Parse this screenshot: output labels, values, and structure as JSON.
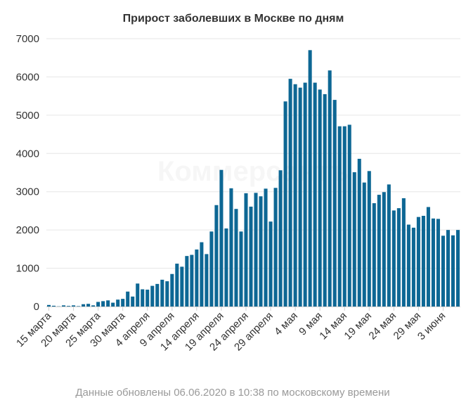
{
  "chart_data": {
    "type": "bar",
    "title": "Прирост заболевших в Москве по дням",
    "xlabel": "",
    "ylabel": "",
    "ylim": [
      0,
      7000
    ],
    "yticks": [
      0,
      1000,
      2000,
      3000,
      4000,
      5000,
      6000,
      7000
    ],
    "grid": true,
    "legend": "none",
    "bar_color": "#0d6794",
    "tick_labels": [
      {
        "label": "15 марта",
        "index": 0
      },
      {
        "label": "20 марта",
        "index": 5
      },
      {
        "label": "25 марта",
        "index": 10
      },
      {
        "label": "30 марта",
        "index": 15
      },
      {
        "label": "4 апреля",
        "index": 20
      },
      {
        "label": "9 апреля",
        "index": 25
      },
      {
        "label": "14 апреля",
        "index": 30
      },
      {
        "label": "19 апреля",
        "index": 35
      },
      {
        "label": "24 апреля",
        "index": 40
      },
      {
        "label": "29 апреля",
        "index": 45
      },
      {
        "label": "4 мая",
        "index": 50
      },
      {
        "label": "9 мая",
        "index": 55
      },
      {
        "label": "14 мая",
        "index": 60
      },
      {
        "label": "19 мая",
        "index": 65
      },
      {
        "label": "24 мая",
        "index": 70
      },
      {
        "label": "29 мая",
        "index": 75
      },
      {
        "label": "3 июня",
        "index": 80
      }
    ],
    "values": [
      40,
      20,
      5,
      30,
      15,
      30,
      10,
      60,
      70,
      30,
      120,
      140,
      160,
      100,
      180,
      200,
      390,
      260,
      600,
      450,
      440,
      540,
      590,
      700,
      660,
      850,
      1120,
      1040,
      1320,
      1350,
      1490,
      1680,
      1370,
      1960,
      2650,
      3570,
      2040,
      3090,
      2550,
      1960,
      2960,
      2610,
      2970,
      2880,
      3080,
      2220,
      3100,
      3560,
      5360,
      5950,
      5810,
      5720,
      5850,
      6700,
      5850,
      5670,
      5550,
      6170,
      5400,
      4710,
      4710,
      4750,
      3510,
      3860,
      3240,
      3540,
      2700,
      2920,
      2990,
      3190,
      2510,
      2570,
      2830,
      2140,
      2060,
      2340,
      2370,
      2600,
      2300,
      2290,
      1850,
      2000,
      1860,
      2000
    ]
  },
  "footer": {
    "note": "Данные обновлены 06.06.2020 в 10:38 по московскому времени"
  },
  "watermark": {
    "text": "Коммерсантъ"
  }
}
